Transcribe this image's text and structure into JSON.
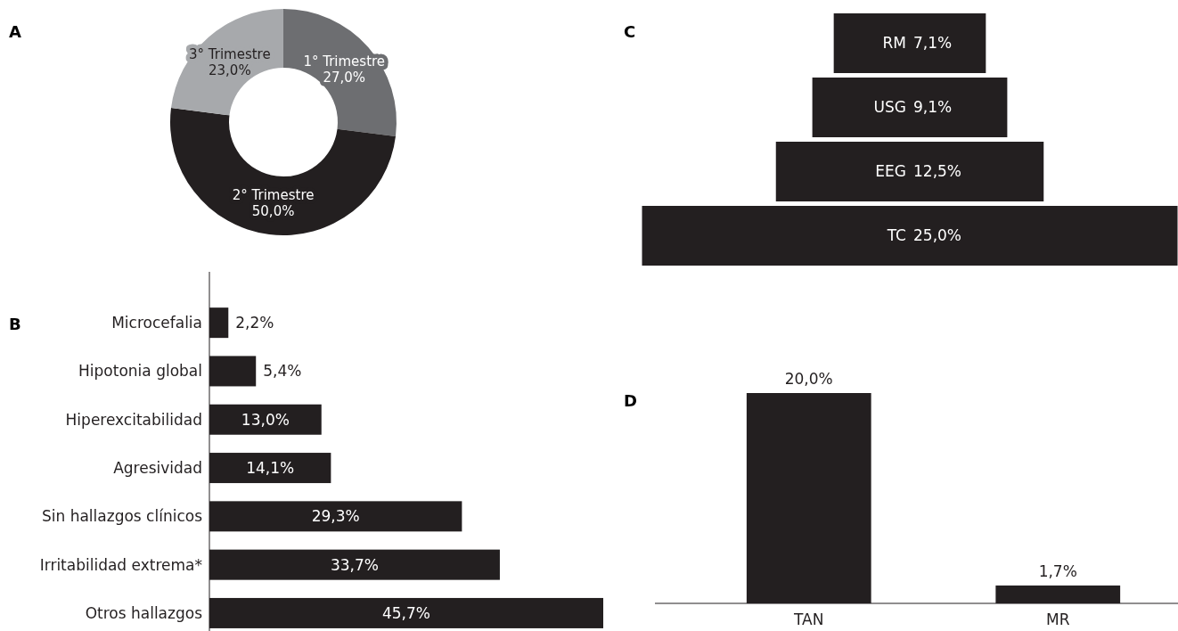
{
  "chart_data": [
    {
      "type": "donut",
      "title": "A",
      "categories": [
        "1° Trimestre",
        "2° Trimestre",
        "3° Trimestre"
      ],
      "values": [
        27.0,
        50.0,
        23.0
      ],
      "colors": [
        "#6d6e71",
        "#231f20",
        "#a7a9ac"
      ],
      "value_labels": [
        "27,0%",
        "50,0%",
        "23,0%"
      ]
    },
    {
      "type": "bar",
      "orientation": "horizontal",
      "title": "B",
      "categories": [
        "Microcefalia",
        "Hipotonia global",
        "Hiperexcitabilidad",
        "Agresividad",
        "Sin hallazgos clínicos",
        "Irritabilidad extrema*",
        "Otros hallazgos"
      ],
      "values": [
        2.2,
        5.4,
        13.0,
        14.1,
        29.3,
        33.7,
        45.7
      ],
      "color": "#231f20",
      "value_labels": [
        "2,2%",
        "5,4%",
        "13,0%",
        "14,1%",
        "29,3%",
        "33,7%",
        "45,7%"
      ]
    },
    {
      "type": "other",
      "title": "C",
      "categories": [
        "RM",
        "USG",
        "EEG",
        "TC"
      ],
      "values": [
        7.1,
        9.1,
        12.5,
        25.0
      ],
      "color": "#231f20",
      "value_labels": [
        "7,1%",
        "9,1%",
        "12,5%",
        "25,0%"
      ]
    },
    {
      "type": "bar",
      "title": "D",
      "categories": [
        "TAN",
        "MR"
      ],
      "values": [
        20.0,
        1.7
      ],
      "color": "#231f20",
      "value_labels": [
        "20,0%",
        "1,7%"
      ]
    }
  ]
}
